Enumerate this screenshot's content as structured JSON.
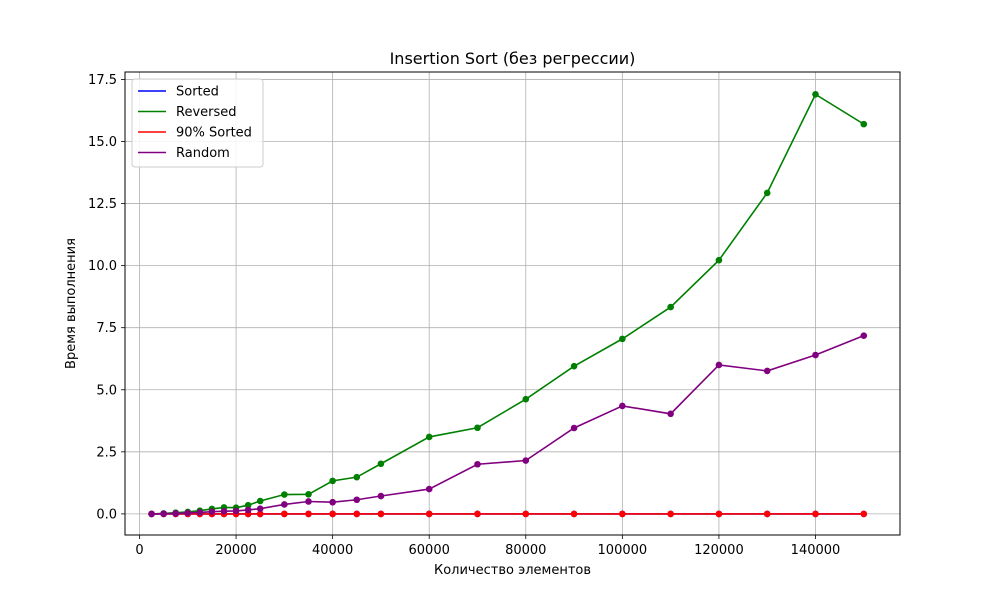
{
  "chart_data": {
    "type": "line",
    "title": "Insertion Sort (без регрессии)",
    "xlabel": "Количество элементов",
    "ylabel": "Время выполнения",
    "xlim": [
      -3000,
      157500
    ],
    "ylim": [
      -0.85,
      17.8
    ],
    "xticks": [
      0,
      20000,
      40000,
      60000,
      80000,
      100000,
      120000,
      140000
    ],
    "yticks": [
      0.0,
      2.5,
      5.0,
      7.5,
      10.0,
      12.5,
      15.0,
      17.5
    ],
    "xtick_labels": [
      "0",
      "20000",
      "40000",
      "60000",
      "80000",
      "100000",
      "120000",
      "140000"
    ],
    "ytick_labels": [
      "0.0",
      "2.5",
      "5.0",
      "7.5",
      "10.0",
      "12.5",
      "15.0",
      "17.5"
    ],
    "grid": true,
    "legend_position": "top-left",
    "x": [
      2500,
      5000,
      7500,
      10000,
      12500,
      15000,
      17500,
      20000,
      22500,
      25000,
      30000,
      35000,
      40000,
      45000,
      50000,
      60000,
      70000,
      80000,
      90000,
      100000,
      110000,
      120000,
      130000,
      140000,
      150000
    ],
    "series": [
      {
        "name": "Sorted",
        "color": "#0000ff",
        "values": [
          0,
          0,
          0,
          0,
          0,
          0,
          0,
          0,
          0,
          0,
          0,
          0,
          0,
          0,
          0,
          0,
          0,
          0,
          0,
          0,
          0,
          0,
          0,
          0,
          0
        ]
      },
      {
        "name": "Reversed",
        "color": "#008000",
        "values": [
          0.0,
          0.02,
          0.05,
          0.08,
          0.13,
          0.2,
          0.26,
          0.25,
          0.35,
          0.52,
          0.78,
          0.79,
          1.33,
          1.48,
          2.02,
          3.1,
          3.47,
          4.62,
          5.95,
          7.05,
          8.33,
          10.22,
          12.93,
          16.9,
          15.7
        ]
      },
      {
        "name": "90% Sorted",
        "color": "#ff0000",
        "values": [
          0,
          0,
          0,
          0,
          0,
          0,
          0,
          0,
          0,
          0,
          0,
          0,
          0,
          0,
          0,
          0,
          0,
          0,
          0,
          0,
          0,
          0,
          0,
          0,
          0
        ]
      },
      {
        "name": "Random",
        "color": "#800080",
        "values": [
          0.0,
          0.01,
          0.02,
          0.04,
          0.06,
          0.09,
          0.11,
          0.12,
          0.16,
          0.21,
          0.38,
          0.5,
          0.47,
          0.57,
          0.72,
          1.0,
          2.0,
          2.15,
          3.46,
          4.35,
          4.03,
          6.0,
          5.76,
          6.4,
          7.18
        ]
      }
    ]
  }
}
